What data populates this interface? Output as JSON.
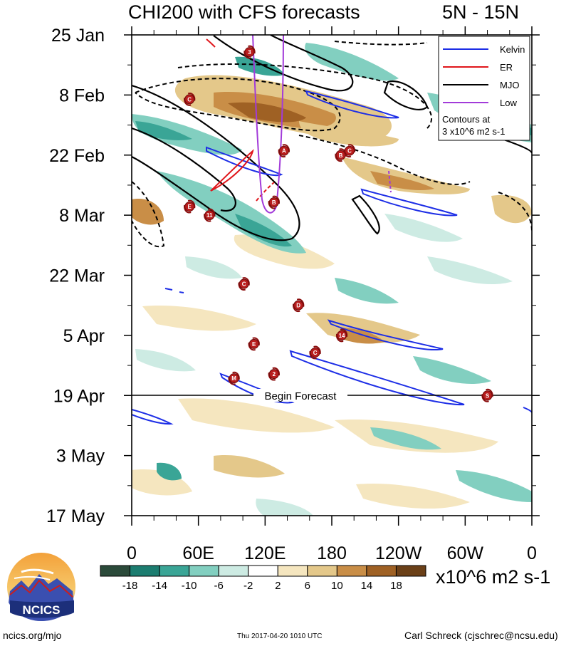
{
  "header": {
    "title": "CHI200 with CFS forecasts",
    "region": "5N - 15N"
  },
  "chart_data": {
    "type": "heatmap",
    "title": "CHI200 with CFS forecasts",
    "subtitle": "5N - 15N",
    "x_ticks": [
      "0",
      "60E",
      "120E",
      "180",
      "120W",
      "60W",
      "0"
    ],
    "x_range": [
      0,
      360
    ],
    "y_ticks": [
      "25 Jan",
      "8 Feb",
      "22 Feb",
      "8 Mar",
      "22 Mar",
      "5 Apr",
      "19 Apr",
      "3 May",
      "17 May"
    ],
    "y_range": [
      "2017-01-25",
      "2017-05-17"
    ],
    "forecast_start": "2017-04-19",
    "forecast_label": "Begin Forecast",
    "legend": {
      "placement": "top-right",
      "entries": [
        {
          "name": "Kelvin",
          "color": "#1d2ee6"
        },
        {
          "name": "ER",
          "color": "#e0161b"
        },
        {
          "name": "MJO",
          "color": "#000000"
        },
        {
          "name": "Low",
          "color": "#a23bd9"
        }
      ],
      "note_line1": "Contours at",
      "note_line2": "3 x10^6 m2 s-1"
    },
    "colorbar": {
      "labels": [
        "-18",
        "-14",
        "-10",
        "-6",
        "-2",
        "2",
        "6",
        "10",
        "14",
        "18"
      ],
      "colors": [
        "#2b4a3a",
        "#1c7d70",
        "#3aa596",
        "#82cfc0",
        "#cdebe3",
        "#ffffff",
        "#f5e6bf",
        "#e4c88a",
        "#c98e47",
        "#9f6124",
        "#6b4018"
      ],
      "units": "x10^6 m2 s-1"
    },
    "cyclone_markers": [
      {
        "label": "3",
        "lon": 106,
        "date": "2017-01-29"
      },
      {
        "label": "C",
        "lon": 52,
        "date": "2017-02-09"
      },
      {
        "label": "A",
        "lon": 137,
        "date": "2017-02-21"
      },
      {
        "label": "B",
        "lon": 188,
        "date": "2017-02-22"
      },
      {
        "label": "C",
        "lon": 196,
        "date": "2017-02-21"
      },
      {
        "label": "B",
        "lon": 128,
        "date": "2017-03-05"
      },
      {
        "label": "E",
        "lon": 52,
        "date": "2017-03-06"
      },
      {
        "label": "11",
        "lon": 70,
        "date": "2017-03-08"
      },
      {
        "label": "C",
        "lon": 101,
        "date": "2017-03-24"
      },
      {
        "label": "D",
        "lon": 150,
        "date": "2017-03-29"
      },
      {
        "label": "14",
        "lon": 189,
        "date": "2017-04-05"
      },
      {
        "label": "E",
        "lon": 110,
        "date": "2017-04-07"
      },
      {
        "label": "C",
        "lon": 165,
        "date": "2017-04-09"
      },
      {
        "label": "2",
        "lon": 128,
        "date": "2017-04-14"
      },
      {
        "label": "M",
        "lon": 92,
        "date": "2017-04-15"
      },
      {
        "label": "S",
        "lon": 320,
        "date": "2017-04-19"
      }
    ]
  },
  "logo": {
    "text": "NCICS"
  },
  "footer": {
    "left": "ncics.org/mjo",
    "middle": "Thu 2017-04-20 1010 UTC",
    "right": "Carl Schreck (cjschrec@ncsu.edu)"
  }
}
